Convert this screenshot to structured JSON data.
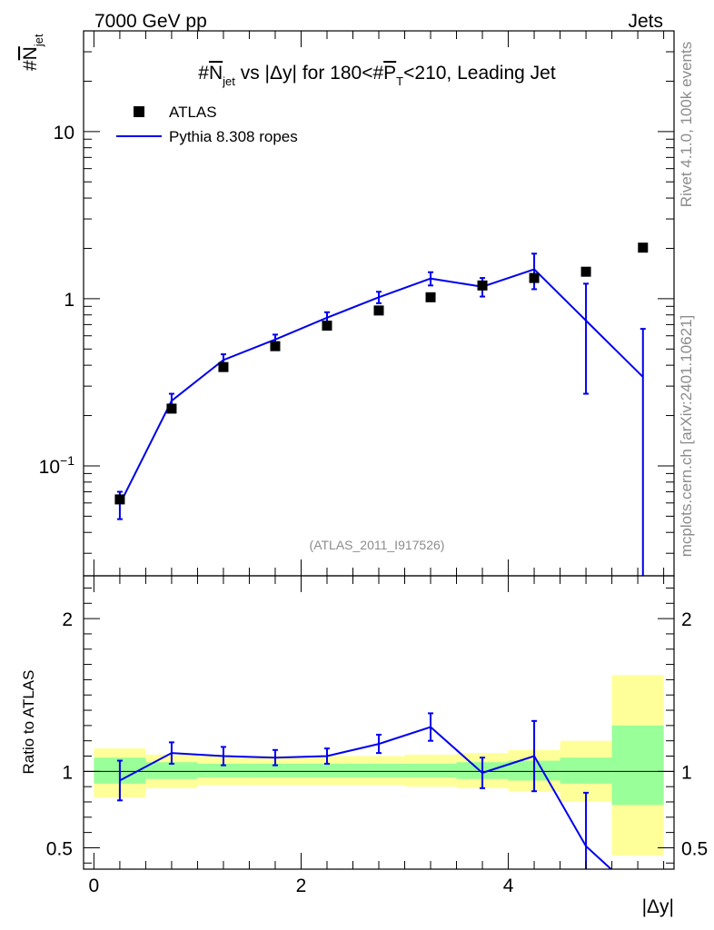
{
  "header": {
    "left": "7000 GeV pp",
    "right": "Jets"
  },
  "side_text": {
    "rivet": "Rivet 4.1.0,  100k events",
    "mcplots": "mcplots.cern.ch [arXiv:2401.10621]"
  },
  "colors": {
    "mc": "#0000ee",
    "data": "#000000",
    "band_inner": "#99ff99",
    "band_outer": "#ffff99"
  },
  "chart_data": [
    {
      "type": "scatter",
      "title": "#N̅jet vs |Δy| for 180<#P̅T<210, Leading Jet",
      "title_parts": {
        "prefix": "#",
        "n": "N",
        "n_sub": "jet",
        "mid": " vs |Δy| for 180<#",
        "p": "P",
        "p_sub": "T",
        "suffix": "<210, Leading Jet"
      },
      "ylabel": "#N̅jet",
      "ylabel_parts": {
        "prefix": "#",
        "n": "N",
        "n_sub": "jet"
      },
      "yscale": "log",
      "ylim": [
        0.022,
        40
      ],
      "xlim": [
        -0.1,
        5.6
      ],
      "yticks": [
        {
          "value": 0.1,
          "base": "10",
          "exp": "−1"
        },
        {
          "value": 1,
          "label": "1"
        },
        {
          "value": 10,
          "label": "10"
        }
      ],
      "watermark": "(ATLAS_2011_I917526)",
      "legend": {
        "position": "top-left",
        "data_label": "ATLAS",
        "mc_label": "Pythia 8.308 ropes"
      },
      "data_series": {
        "name": "ATLAS",
        "x": [
          0.25,
          0.75,
          1.25,
          1.75,
          2.25,
          2.75,
          3.25,
          3.75,
          4.25,
          4.75,
          5.3
        ],
        "y": [
          0.063,
          0.22,
          0.39,
          0.52,
          0.69,
          0.85,
          1.02,
          1.2,
          1.33,
          1.45,
          2.02
        ]
      },
      "mc_series": {
        "name": "Pythia 8.308 ropes",
        "x": [
          0.25,
          0.75,
          1.25,
          1.75,
          2.25,
          2.75,
          3.25,
          3.75,
          4.25,
          4.75,
          5.3
        ],
        "y": [
          0.059,
          0.245,
          0.43,
          0.57,
          0.77,
          1.02,
          1.32,
          1.18,
          1.5,
          0.74,
          0.34
        ],
        "err_low": [
          0.011,
          0.025,
          0.035,
          0.04,
          0.06,
          0.08,
          0.12,
          0.15,
          0.36,
          0.47,
          0.33
        ],
        "err_high": [
          0.011,
          0.025,
          0.035,
          0.04,
          0.06,
          0.08,
          0.12,
          0.15,
          0.36,
          0.49,
          0.32
        ]
      }
    },
    {
      "type": "line",
      "ylabel": "Ratio to ATLAS",
      "xlabel": "|Δy|",
      "ylim": [
        0.36,
        2.28
      ],
      "xlim": [
        -0.1,
        5.6
      ],
      "yticks": [
        0.5,
        1,
        2
      ],
      "xticks": [
        0,
        2,
        4
      ],
      "reference_line": 1,
      "bands": [
        {
          "x0": 0.0,
          "x1": 0.5,
          "inner": [
            0.92,
            1.09
          ],
          "outer": [
            0.83,
            1.15
          ]
        },
        {
          "x0": 0.5,
          "x1": 1.0,
          "inner": [
            0.95,
            1.06
          ],
          "outer": [
            0.89,
            1.11
          ]
        },
        {
          "x0": 1.0,
          "x1": 1.5,
          "inner": [
            0.96,
            1.05
          ],
          "outer": [
            0.91,
            1.1
          ]
        },
        {
          "x0": 1.5,
          "x1": 2.0,
          "inner": [
            0.96,
            1.05
          ],
          "outer": [
            0.91,
            1.1
          ]
        },
        {
          "x0": 2.0,
          "x1": 2.5,
          "inner": [
            0.96,
            1.05
          ],
          "outer": [
            0.91,
            1.1
          ]
        },
        {
          "x0": 2.5,
          "x1": 3.0,
          "inner": [
            0.96,
            1.05
          ],
          "outer": [
            0.91,
            1.1
          ]
        },
        {
          "x0": 3.0,
          "x1": 3.5,
          "inner": [
            0.96,
            1.05
          ],
          "outer": [
            0.9,
            1.11
          ]
        },
        {
          "x0": 3.5,
          "x1": 4.0,
          "inner": [
            0.95,
            1.06
          ],
          "outer": [
            0.89,
            1.12
          ]
        },
        {
          "x0": 4.0,
          "x1": 4.5,
          "inner": [
            0.94,
            1.07
          ],
          "outer": [
            0.87,
            1.14
          ]
        },
        {
          "x0": 4.5,
          "x1": 5.0,
          "inner": [
            0.92,
            1.09
          ],
          "outer": [
            0.8,
            1.2
          ]
        },
        {
          "x0": 5.0,
          "x1": 5.5,
          "inner": [
            0.78,
            1.3
          ],
          "outer": [
            0.45,
            1.63
          ]
        }
      ],
      "ratio_series": {
        "x": [
          0.25,
          0.75,
          1.25,
          1.75,
          2.25,
          2.75,
          3.25,
          3.75,
          4.25,
          4.75,
          5.3
        ],
        "y": [
          0.94,
          1.12,
          1.1,
          1.09,
          1.1,
          1.18,
          1.29,
          0.99,
          1.1,
          0.51,
          0.17
        ],
        "err_low": [
          0.13,
          0.07,
          0.06,
          0.05,
          0.05,
          0.06,
          0.09,
          0.1,
          0.23,
          0.33,
          0.17
        ],
        "err_high": [
          0.13,
          0.07,
          0.06,
          0.05,
          0.05,
          0.06,
          0.09,
          0.1,
          0.23,
          0.35,
          0.17
        ]
      }
    }
  ]
}
